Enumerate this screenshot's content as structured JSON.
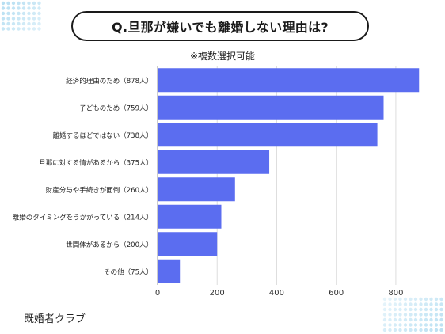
{
  "title": "Q.旦那が嫌いでも離婚しない理由は?",
  "subtitle": "※複数選択可能",
  "brand": "既婚者クラブ",
  "colors": {
    "bar": "#5b6df0",
    "grid": "#dddddd",
    "dots": "#b7dff2"
  },
  "chart_data": {
    "type": "bar",
    "orientation": "horizontal",
    "categories": [
      "経済的理由のため（878人）",
      "子どものため（759人）",
      "離婚するほどではない（738人）",
      "旦那に対する情があるから（375人）",
      "財産分与や手続きが面倒（260人）",
      "離婚のタイミングをうかがっている（214人）",
      "世間体があるから（200人）",
      "その他（75人）"
    ],
    "values": [
      878,
      759,
      738,
      375,
      260,
      214,
      200,
      75
    ],
    "xlim": [
      0,
      880
    ],
    "xticks": [
      "0",
      "200",
      "400",
      "600",
      "800"
    ],
    "grid": "vertical"
  }
}
